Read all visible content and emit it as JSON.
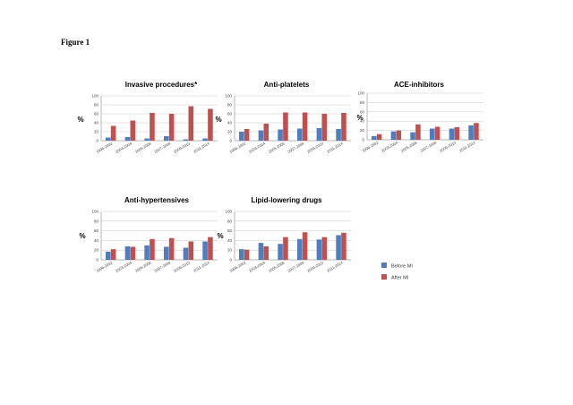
{
  "figure_label": "Figure 1",
  "colors": {
    "before": "#4f7ec0",
    "after": "#c0504d",
    "grid": "#c8c8c8",
    "axis": "#8a8a8a"
  },
  "legend": {
    "placement": "bottom-right",
    "items": [
      "Before MI",
      "After MI"
    ]
  },
  "chart_data": [
    {
      "type": "bar",
      "title": "Invasive procedures*",
      "ylabel": "%",
      "ylim": [
        0,
        100
      ],
      "yticks": [
        "0",
        "20",
        "40",
        "60",
        "80",
        "100"
      ],
      "grid": true,
      "categories": [
        "1996-2002",
        "2003-2004",
        "2005-2006",
        "2007-2008",
        "2009-2010",
        "2011-2014"
      ],
      "series": [
        {
          "name": "Before MI",
          "values": [
            7,
            8,
            5,
            10,
            3,
            5
          ]
        },
        {
          "name": "After MI",
          "values": [
            33,
            45,
            62,
            60,
            77,
            71
          ]
        }
      ]
    },
    {
      "type": "bar",
      "title": "Anti-platelets",
      "ylabel": "%",
      "ylim": [
        0,
        100
      ],
      "yticks": [
        "0",
        "20",
        "40",
        "60",
        "80",
        "100"
      ],
      "grid": true,
      "categories": [
        "1996-2002",
        "2003-2004",
        "2005-2006",
        "2007-2008",
        "2009-2010",
        "2011-2014"
      ],
      "series": [
        {
          "name": "Before MI",
          "values": [
            20,
            23,
            25,
            27,
            28,
            26
          ]
        },
        {
          "name": "After MI",
          "values": [
            26,
            38,
            63,
            63,
            60,
            62
          ]
        }
      ]
    },
    {
      "type": "bar",
      "title": "ACE-inhibitors",
      "ylabel": "%",
      "ylim": [
        0,
        100
      ],
      "yticks": [
        "0",
        "20",
        "40",
        "60",
        "80",
        "100"
      ],
      "grid": true,
      "categories": [
        "1996-2002",
        "2003-2004",
        "2005-2006",
        "2007-2008",
        "2009-2010",
        "2011-2014"
      ],
      "series": [
        {
          "name": "Before MI",
          "values": [
            8,
            18,
            16,
            24,
            24,
            31
          ]
        },
        {
          "name": "After MI",
          "values": [
            12,
            20,
            33,
            28,
            27,
            36
          ]
        }
      ]
    },
    {
      "type": "bar",
      "title": "Anti-hypertensives",
      "ylabel": "%",
      "ylim": [
        0,
        100
      ],
      "yticks": [
        "0",
        "20",
        "40",
        "60",
        "80",
        "100"
      ],
      "grid": true,
      "categories": [
        "1996-2002",
        "2003-2004",
        "2005-2006",
        "2007-2008",
        "2009-2010",
        "2011-2014"
      ],
      "series": [
        {
          "name": "Before MI",
          "values": [
            17,
            28,
            30,
            27,
            25,
            38
          ]
        },
        {
          "name": "After MI",
          "values": [
            22,
            27,
            43,
            45,
            38,
            47
          ]
        }
      ]
    },
    {
      "type": "bar",
      "title": "Lipid-lowering drugs",
      "ylabel": "%",
      "ylim": [
        0,
        100
      ],
      "yticks": [
        "0",
        "20",
        "40",
        "60",
        "80",
        "100"
      ],
      "grid": true,
      "categories": [
        "1996-2002",
        "2003-2004",
        "2005-2006",
        "2007-2008",
        "2009-2010",
        "2011-2014"
      ],
      "series": [
        {
          "name": "Before MI",
          "values": [
            22,
            35,
            33,
            43,
            42,
            51
          ]
        },
        {
          "name": "After MI",
          "values": [
            21,
            28,
            47,
            57,
            47,
            56
          ]
        }
      ]
    }
  ]
}
